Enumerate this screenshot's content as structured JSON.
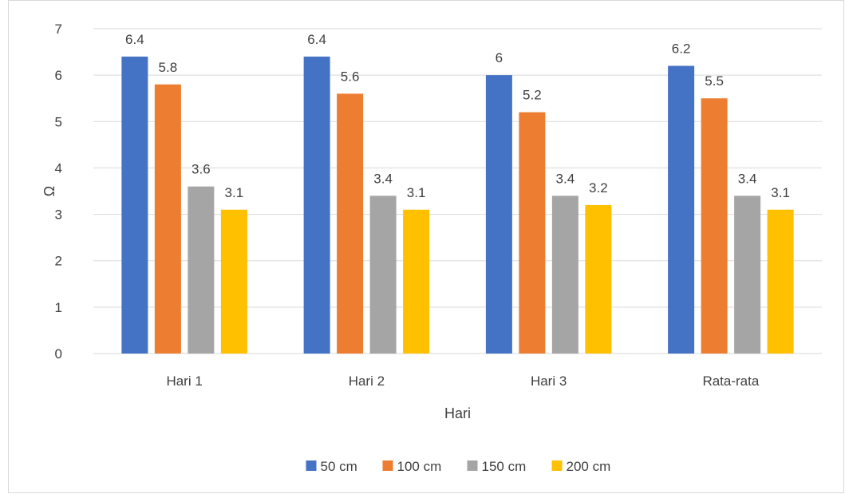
{
  "chart_data": {
    "type": "bar",
    "categories": [
      "Hari 1",
      "Hari 2",
      "Hari 3",
      "Rata-rata"
    ],
    "series": [
      {
        "name": "50 cm",
        "values": [
          6.4,
          6.4,
          6.0,
          6.2
        ],
        "labels": [
          "6.4",
          "6.4",
          "6",
          "6.2"
        ],
        "color": "#4472c4"
      },
      {
        "name": "100 cm",
        "values": [
          5.8,
          5.6,
          5.2,
          5.5
        ],
        "labels": [
          "5.8",
          "5.6",
          "5.2",
          "5.5"
        ],
        "color": "#ed7d31"
      },
      {
        "name": "150 cm",
        "values": [
          3.6,
          3.4,
          3.4,
          3.4
        ],
        "labels": [
          "3.6",
          "3.4",
          "3.4",
          "3.4"
        ],
        "color": "#a5a5a5"
      },
      {
        "name": "200 cm",
        "values": [
          3.1,
          3.1,
          3.2,
          3.1
        ],
        "labels": [
          "3.1",
          "3.1",
          "3.2",
          "3.1"
        ],
        "color": "#ffc000"
      }
    ],
    "xlabel": "Hari",
    "ylabel": "Ω",
    "ylim": [
      0,
      7
    ],
    "yticks": [
      "0",
      "1",
      "2",
      "3",
      "4",
      "5",
      "6",
      "7"
    ],
    "grid": true,
    "legend_position": "bottom"
  }
}
